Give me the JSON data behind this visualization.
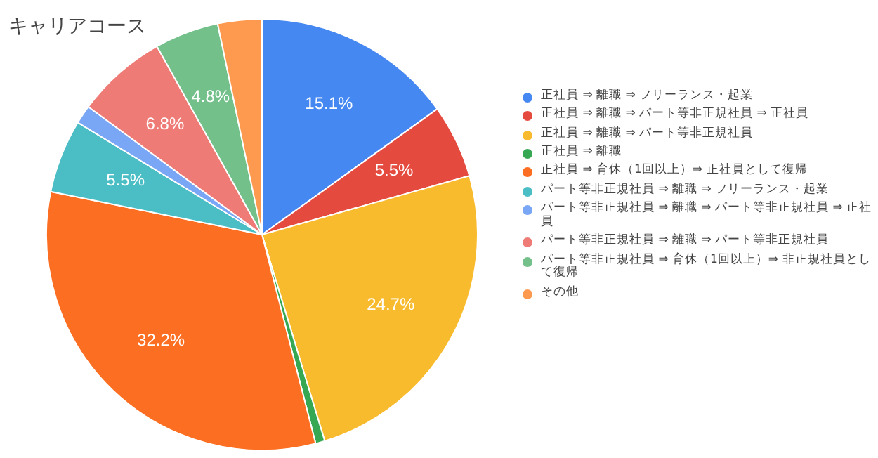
{
  "chart_data": {
    "type": "pie",
    "title": "キャリアコース",
    "legend": "right",
    "categories": [
      "正社員 ⇒ 離職 ⇒ フリーランス・起業",
      "正社員 ⇒ 離職 ⇒ パート等非正規社員 ⇒ 正社員",
      "正社員 ⇒ 離職 ⇒ パート等非正規社員",
      "正社員 ⇒ 離職",
      "正社員 ⇒ 育休（1回以上）⇒ 正社員として復帰",
      "パート等非正規社員 ⇒ 離職 ⇒ フリーランス・起業",
      "パート等非正規社員 ⇒ 離職 ⇒ パート等非正規社員 ⇒ 正社員",
      "パート等非正規社員 ⇒ 離職 ⇒ パート等非正規社員",
      "パート等非正規社員 ⇒ 育休（1回以上）⇒ 非正規社員として復帰",
      "その他"
    ],
    "values": [
      15.1,
      5.5,
      24.7,
      0.7,
      32.2,
      5.5,
      1.4,
      6.8,
      4.8,
      3.3
    ],
    "value_labels": [
      "15.1%",
      "5.5%",
      "24.7%",
      null,
      "32.2%",
      "5.5%",
      null,
      "6.8%",
      "4.8%",
      null
    ],
    "colors": [
      "#4688f1",
      "#e54a3f",
      "#f9bb2e",
      "#36a853",
      "#fc6e21",
      "#4bbdc5",
      "#7aa6f6",
      "#ee7b76",
      "#73c08a",
      "#fe9a4f"
    ]
  }
}
